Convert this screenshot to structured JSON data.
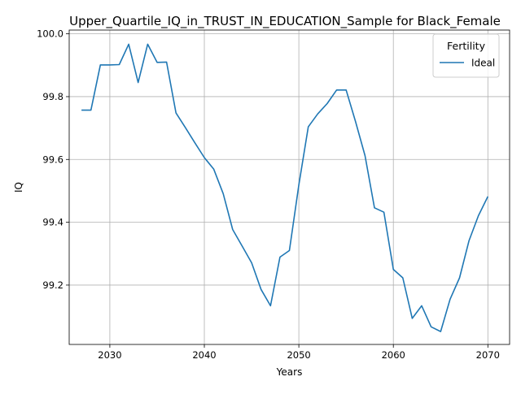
{
  "chart_data": {
    "type": "line",
    "title": "Upper_Quartile_IQ_in_TRUST_IN_EDUCATION_Sample for Black_Female",
    "xlabel": "Years",
    "ylabel": "IQ",
    "xlim": [
      2025.7,
      2072.3
    ],
    "ylim": [
      99.011,
      100.012
    ],
    "x_ticks": [
      2030,
      2040,
      2050,
      2060,
      2070
    ],
    "x_tick_labels": [
      "2030",
      "2040",
      "2050",
      "2060",
      "2070"
    ],
    "y_ticks": [
      99.2,
      99.4,
      99.6,
      99.8,
      100.0
    ],
    "y_tick_labels": [
      "99.2",
      "99.4",
      "99.6",
      "99.8",
      "100.0"
    ],
    "grid": true,
    "legend": {
      "title": "Fertility",
      "position": "top-right"
    },
    "series": [
      {
        "name": "Ideal",
        "color": "#1f77b4",
        "x": [
          2027,
          2028,
          2029,
          2030,
          2031,
          2032,
          2033,
          2034,
          2035,
          2036,
          2037,
          2038,
          2039,
          2040,
          2041,
          2042,
          2043,
          2044,
          2045,
          2046,
          2047,
          2048,
          2049,
          2050,
          2051,
          2052,
          2053,
          2054,
          2055,
          2056,
          2057,
          2058,
          2059,
          2060,
          2061,
          2062,
          2063,
          2064,
          2065,
          2066,
          2067,
          2068,
          2069,
          2070
        ],
        "values": [
          99.757,
          99.757,
          99.901,
          99.901,
          99.902,
          99.967,
          99.845,
          99.967,
          99.909,
          99.91,
          99.748,
          99.701,
          99.653,
          99.606,
          99.569,
          99.491,
          99.377,
          99.324,
          99.271,
          99.186,
          99.134,
          99.289,
          99.31,
          99.519,
          99.704,
          99.745,
          99.778,
          99.821,
          99.821,
          99.72,
          99.612,
          99.446,
          99.432,
          99.25,
          99.223,
          99.094,
          99.134,
          99.067,
          99.052,
          99.155,
          99.223,
          99.341,
          99.421,
          99.482
        ]
      }
    ]
  }
}
